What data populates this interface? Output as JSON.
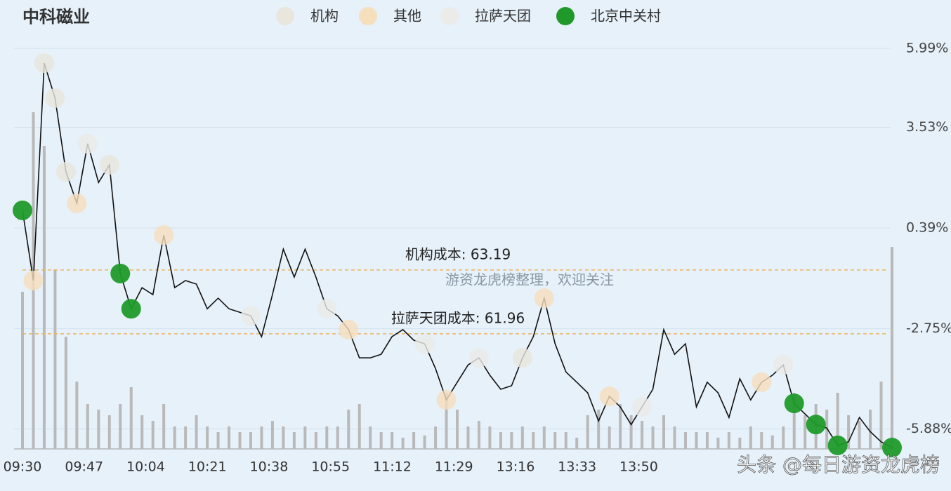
{
  "chart_data": {
    "type": "line",
    "title": "中科磁业",
    "line": {
      "color": "#111111",
      "values": [
        0.94,
        -1.25,
        5.53,
        4.44,
        2.14,
        1.16,
        3.02,
        1.81,
        2.36,
        -1.03,
        -2.13,
        -1.47,
        -1.69,
        0.17,
        -1.47,
        -1.25,
        -1.36,
        -2.13,
        -1.8,
        -2.13,
        -2.24,
        -2.35,
        -3.0,
        -1.69,
        -0.27,
        -1.14,
        -0.27,
        -1.14,
        -2.13,
        -2.35,
        -2.78,
        -3.66,
        -3.66,
        -3.55,
        -3.0,
        -2.78,
        -3.11,
        -3.22,
        -3.99,
        -4.97,
        -4.42,
        -3.88,
        -3.66,
        -4.2,
        -4.64,
        -4.53,
        -3.66,
        -3.0,
        -1.8,
        -3.22,
        -4.1,
        -4.42,
        -4.75,
        -5.63,
        -4.86,
        -5.19,
        -5.74,
        -5.19,
        -4.64,
        -2.78,
        -3.55,
        -3.22,
        -5.19,
        -4.42,
        -4.75,
        -5.52,
        -4.31,
        -4.97,
        -4.42,
        -4.2,
        -3.88,
        -5.08,
        -5.41,
        -5.74,
        -5.85,
        -6.39,
        -6.28,
        -5.52,
        -5.96,
        -6.28,
        -6.46
      ]
    },
    "volume": {
      "color": "#b9b9b9",
      "lim": [
        0,
        400
      ],
      "values": [
        140,
        300,
        270,
        160,
        100,
        60,
        40,
        35,
        30,
        40,
        55,
        30,
        25,
        40,
        20,
        20,
        30,
        20,
        15,
        20,
        15,
        15,
        20,
        25,
        20,
        15,
        20,
        15,
        20,
        20,
        35,
        40,
        20,
        15,
        15,
        10,
        15,
        12,
        20,
        50,
        35,
        20,
        25,
        20,
        15,
        15,
        20,
        15,
        20,
        15,
        15,
        10,
        30,
        35,
        20,
        40,
        30,
        25,
        20,
        30,
        20,
        15,
        15,
        15,
        10,
        15,
        10,
        20,
        15,
        12,
        20,
        50,
        30,
        40,
        35,
        50,
        30,
        25,
        35,
        60,
        180
      ]
    },
    "series": [
      {
        "name": "机构",
        "color": "#e9e6dd",
        "points": [
          2,
          3,
          4,
          8,
          46
        ]
      },
      {
        "name": "其他",
        "color": "#f6dfbd",
        "points": [
          1,
          5,
          13,
          30,
          39,
          48,
          54,
          68
        ]
      },
      {
        "name": "拉萨天团",
        "color": "#ebebe8",
        "points": [
          6,
          21,
          28,
          37,
          42,
          57,
          70
        ]
      },
      {
        "name": "北京中关村",
        "color": "#1f9a2a",
        "points": [
          0,
          9,
          10,
          71,
          73,
          75,
          80
        ]
      }
    ],
    "ylim": [
      -6.5,
      7.5
    ],
    "yticks": [
      {
        "value": 5.99,
        "label": "5.99%"
      },
      {
        "value": 3.53,
        "label": "3.53%"
      },
      {
        "value": 0.39,
        "label": "0.39%"
      },
      {
        "value": -2.75,
        "label": "-2.75%"
      },
      {
        "value": -5.88,
        "label": "-5.88%"
      }
    ],
    "xticks": [
      {
        "value": 0,
        "label": "09:30"
      },
      {
        "value": 5.67,
        "label": "09:47"
      },
      {
        "value": 11.34,
        "label": "10:04"
      },
      {
        "value": 17.01,
        "label": "10:21"
      },
      {
        "value": 22.68,
        "label": "10:38"
      },
      {
        "value": 28.35,
        "label": "10:55"
      },
      {
        "value": 34.02,
        "label": "11:12"
      },
      {
        "value": 39.69,
        "label": "11:29"
      },
      {
        "value": 45.36,
        "label": "13:16"
      },
      {
        "value": 51.03,
        "label": "13:33"
      },
      {
        "value": 56.7,
        "label": "13:50"
      }
    ],
    "references": [
      {
        "label": "机构成本: 63.19",
        "value": -0.92,
        "color": "#eab464"
      },
      {
        "label": "拉萨天团成本: 61.96",
        "value": -2.91,
        "color": "#eab464"
      }
    ],
    "grid": true,
    "watermark": "游资龙虎榜整理，欢迎关注",
    "footer": "头条 @每日游资龙虎榜"
  }
}
